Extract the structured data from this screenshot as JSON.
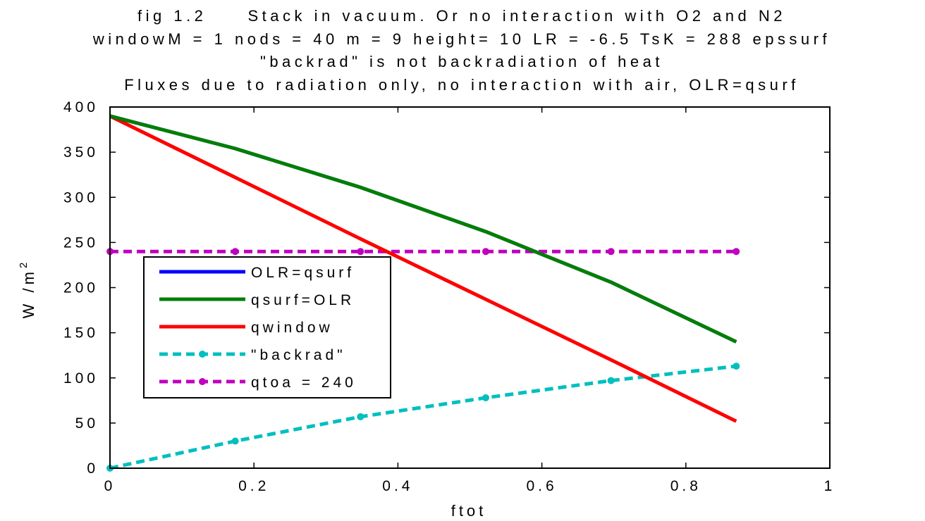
{
  "chart_data": {
    "type": "line",
    "title_lines": [
      "fig 1.2     Stack in vacuum. Or no interaction with O2 and N2",
      "windowM = 1 nods = 40 m = 9 height= 10 LR = -6.5 TsK = 288 epssurf",
      "\"backrad\" is not backradiation of heat",
      "Fluxes due to radiation only, no interaction with air, OLR=qsurf"
    ],
    "xlabel": "ftot",
    "ylabel": "W /m",
    "ylabel_sup": "2",
    "xlim": [
      0,
      1
    ],
    "ylim": [
      0,
      400
    ],
    "x_ticks": [
      0,
      0.2,
      0.4,
      0.6,
      0.8,
      1
    ],
    "x_tick_labels": [
      "0",
      "0.2",
      "0.4",
      "0.6",
      "0.8",
      "1"
    ],
    "y_ticks": [
      0,
      50,
      100,
      150,
      200,
      250,
      300,
      350,
      400
    ],
    "y_tick_labels": [
      "0",
      "50",
      "100",
      "150",
      "200",
      "250",
      "300",
      "350",
      "400"
    ],
    "grid": false,
    "legend_position": "center-left",
    "series": [
      {
        "name": "OLR=qsurf",
        "color": "#0000ff",
        "style": "solid",
        "markers": false,
        "x": [
          0,
          0.174,
          0.348,
          0.522,
          0.696,
          0.87
        ],
        "y": [
          390,
          354,
          311,
          262,
          206,
          140
        ]
      },
      {
        "name": "qsurf=OLR",
        "color": "#007f00",
        "style": "solid",
        "markers": false,
        "x": [
          0,
          0.174,
          0.348,
          0.522,
          0.696,
          0.87
        ],
        "y": [
          390,
          354,
          311,
          262,
          206,
          140
        ]
      },
      {
        "name": "qwindow",
        "color": "#ff0000",
        "style": "solid",
        "markers": false,
        "x": [
          0,
          0.174,
          0.348,
          0.522,
          0.696,
          0.87
        ],
        "y": [
          390,
          322,
          254,
          187,
          120,
          52
        ]
      },
      {
        "name": "\"backrad\"",
        "color": "#00bfbf",
        "style": "dashed",
        "markers": true,
        "x": [
          0,
          0.174,
          0.348,
          0.522,
          0.696,
          0.87
        ],
        "y": [
          0,
          30,
          57,
          78,
          97,
          113
        ]
      },
      {
        "name": "qtoa = 240",
        "color": "#bf00bf",
        "style": "dashed",
        "markers": true,
        "x": [
          0,
          0.174,
          0.348,
          0.522,
          0.696,
          0.87
        ],
        "y": [
          240,
          240,
          240,
          240,
          240,
          240
        ]
      }
    ]
  }
}
